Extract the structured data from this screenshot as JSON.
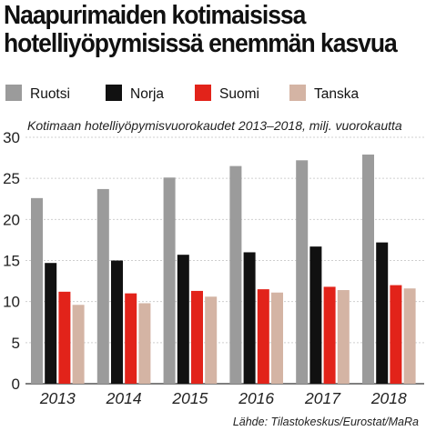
{
  "chart_data": {
    "type": "bar",
    "title_lines": [
      "Naapurimaiden kotimaisissa",
      "hotelliyöpymisissä enemmän kasvua"
    ],
    "subtitle": "Kotimaan hotelliyöpymisvuorokaudet 2013–2018, milj. vuorokautta",
    "source": "Lähde: Tilastokeskus/Eurostat/MaRa",
    "categories": [
      "2013",
      "2014",
      "2015",
      "2016",
      "2017",
      "2018"
    ],
    "series": [
      {
        "name": "Ruotsi",
        "color": "#9b9b9b",
        "values": [
          22.6,
          23.7,
          25.1,
          26.5,
          27.2,
          27.9
        ]
      },
      {
        "name": "Norja",
        "color": "#111111",
        "values": [
          14.7,
          15.0,
          15.7,
          16.0,
          16.7,
          17.2
        ]
      },
      {
        "name": "Suomi",
        "color": "#e2231a",
        "values": [
          11.2,
          11.0,
          11.3,
          11.5,
          11.8,
          12.0
        ]
      },
      {
        "name": "Tanska",
        "color": "#d4b4a4",
        "values": [
          9.6,
          9.8,
          10.6,
          11.1,
          11.4,
          11.6
        ]
      }
    ],
    "y_ticks": [
      "0",
      "5",
      "10",
      "15",
      "20",
      "25",
      "30"
    ],
    "ylim": [
      0,
      30
    ],
    "grid": true,
    "legend_position": "top"
  }
}
